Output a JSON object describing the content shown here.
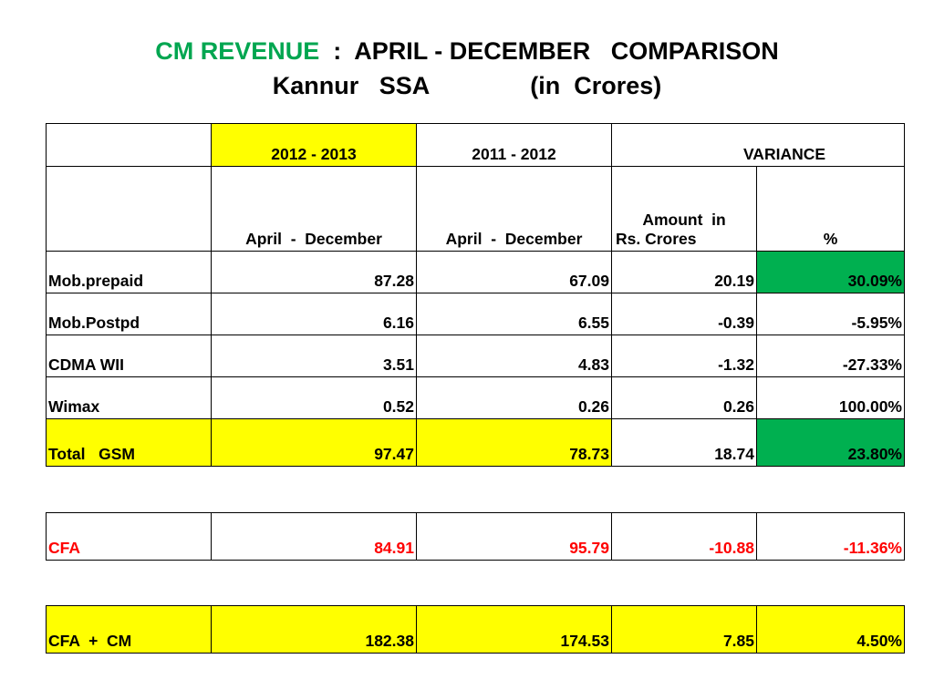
{
  "title": {
    "part1": "CM  REVENUE",
    "part2": "  :  APRIL - DECEMBER   COMPARISON",
    "line2a": "Kannur   SSA",
    "line2b": "(in  Crores)"
  },
  "header": {
    "col2": "2012 - 2013",
    "col3": "2011 - 2012",
    "variance": "VARIANCE",
    "sub2": "April  -  December",
    "sub3": "April  -  December",
    "sub4_line1": "Amount  in",
    "sub4_line2": "Rs. Crores",
    "sub5": "%"
  },
  "rows": [
    {
      "label": "Mob.prepaid",
      "cur": "87.28",
      "prev": "67.09",
      "amt": "20.19",
      "pct": "30.09%"
    },
    {
      "label": "Mob.Postpd",
      "cur": "6.16",
      "prev": "6.55",
      "amt": "-0.39",
      "pct": "-5.95%"
    },
    {
      "label": "CDMA WII",
      "cur": "3.51",
      "prev": "4.83",
      "amt": "-1.32",
      "pct": "-27.33%"
    },
    {
      "label": "Wimax",
      "cur": "0.52",
      "prev": "0.26",
      "amt": "0.26",
      "pct": "100.00%"
    }
  ],
  "total": {
    "label": "Total   GSM",
    "cur": "97.47",
    "prev": "78.73",
    "amt": "18.74",
    "pct": "23.80%"
  },
  "cfa": {
    "label": "CFA",
    "cur": "84.91",
    "prev": "95.79",
    "amt": "-10.88",
    "pct": "-11.36%"
  },
  "combined": {
    "label": "CFA  +  CM",
    "cur": "182.38",
    "prev": "174.53",
    "amt": "7.85",
    "pct": "4.50%"
  },
  "colors": {
    "title_green": "#00a650",
    "highlight_yellow": "#ffff00",
    "highlight_green": "#00b050",
    "negative_red": "#ff0000"
  }
}
